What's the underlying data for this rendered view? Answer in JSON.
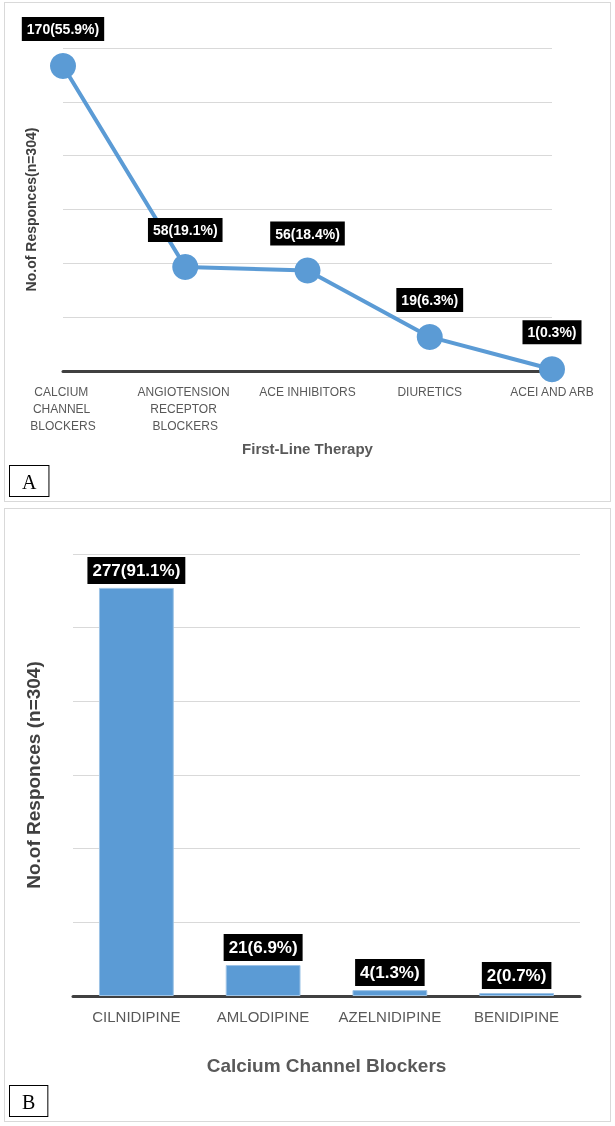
{
  "chart_data": [
    {
      "type": "line",
      "xlabel": "First-Line Therapy",
      "ylabel": "No.of Responces(n=304)",
      "categories": [
        "CALCIUM CHANNEL BLOCKERS",
        "ANGIOTENSION RECEPTOR BLOCKERS",
        "ACE INHIBITORS",
        "DIURETICS",
        "ACEI AND ARB"
      ],
      "series": [
        {
          "color": "#5b9bd5",
          "values": [
            170,
            58,
            56,
            19,
            1
          ],
          "value_labels": [
            "170(55.9%)",
            "58(19.1%)",
            "56(18.4%)",
            "19(6.3%)",
            "1(0.3%)"
          ]
        }
      ],
      "grid": "y",
      "tick_labels": "x",
      "marker": "circle",
      "line_style": "solid",
      "annotations": [
        "A"
      ]
    },
    {
      "type": "bar",
      "xlabel": "Calcium Channel Blockers",
      "ylabel": "No.of Responces (n=304)",
      "categories": [
        "CILNIDIPINE",
        "AMLODIPINE",
        "AZELNIDIPINE",
        "BENIDIPINE"
      ],
      "series": [
        {
          "color": "#5b9bd5",
          "values": [
            277,
            21,
            4,
            2
          ],
          "value_labels": [
            "277(91.1%)",
            "21(6.9%)",
            "4(1.3%)",
            "2(0.7%)"
          ]
        }
      ],
      "grid": "y",
      "tick_labels": "x",
      "annotations": [
        "B"
      ]
    }
  ]
}
